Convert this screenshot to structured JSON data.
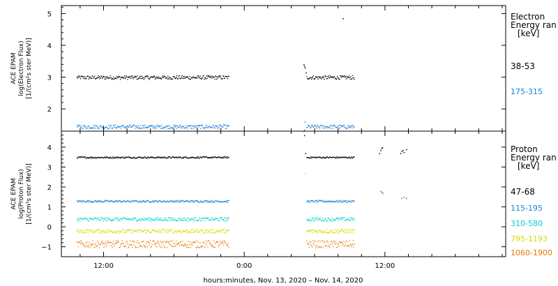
{
  "chart_data": [
    {
      "type": "scatter",
      "panel": "electron",
      "ylabel": [
        "ACE EPAM",
        "log(Electron Flux)",
        "[1/(cm²s ster MeV)]"
      ],
      "ylim": [
        1.3,
        5.25
      ],
      "yticks": [
        2,
        3,
        4,
        5
      ],
      "legend_title": [
        "Electron",
        "Energy ran",
        "[keV]"
      ],
      "series": [
        {
          "name": "38-53",
          "color": "#000000",
          "segments": [
            {
              "x": [
                -14.3,
                -1.3
              ],
              "level": 3.0,
              "jitter": 0.06
            },
            {
              "x": [
                5.3,
                9.4
              ],
              "level": 3.0,
              "jitter": 0.06
            }
          ],
          "points": [
            [
              5.05,
              3.4
            ],
            [
              5.1,
              3.35
            ],
            [
              5.15,
              3.3
            ],
            [
              5.25,
              3.15
            ],
            [
              8.4,
              4.85
            ]
          ]
        },
        {
          "name": "175-315",
          "color": "#1a7fd6",
          "segments": [
            {
              "x": [
                -14.3,
                -1.3
              ],
              "level": 1.45,
              "jitter": 0.06
            },
            {
              "x": [
                5.3,
                9.4
              ],
              "level": 1.45,
              "jitter": 0.06
            }
          ],
          "points": [
            [
              5.05,
              1.3
            ],
            [
              5.1,
              1.35
            ],
            [
              5.15,
              1.6
            ]
          ]
        }
      ]
    },
    {
      "type": "scatter",
      "panel": "proton",
      "ylabel": [
        "ACE EPAM",
        "log(Proton Flux)",
        "[1/(cm²s ster MeV)]"
      ],
      "ylim": [
        -1.5,
        4.8
      ],
      "yticks": [
        -1,
        0,
        1,
        2,
        3,
        4
      ],
      "legend_title": [
        "Proton",
        "Energy ran",
        "[keV]"
      ],
      "series": [
        {
          "name": "47-68",
          "color": "#000000",
          "segments": [
            {
              "x": [
                -14.3,
                -1.3
              ],
              "level": 3.5,
              "jitter": 0.04
            },
            {
              "x": [
                5.3,
                9.4
              ],
              "level": 3.5,
              "jitter": 0.04
            }
          ],
          "points": [
            [
              11.5,
              3.7
            ],
            [
              11.6,
              3.85
            ],
            [
              11.7,
              3.95
            ],
            [
              11.75,
              4.0
            ],
            [
              13.3,
              3.7
            ],
            [
              13.4,
              3.8
            ],
            [
              13.5,
              3.85
            ],
            [
              13.6,
              3.75
            ],
            [
              13.8,
              3.9
            ],
            [
              5.1,
              4.6
            ],
            [
              5.2,
              3.7
            ]
          ]
        },
        {
          "name": "115-195",
          "color": "#1a7fd6",
          "segments": [
            {
              "x": [
                -14.3,
                -1.3
              ],
              "level": 1.3,
              "jitter": 0.05
            },
            {
              "x": [
                5.3,
                9.4
              ],
              "level": 1.3,
              "jitter": 0.05
            }
          ],
          "points": [
            [
              11.6,
              1.8
            ],
            [
              11.7,
              1.75
            ],
            [
              11.8,
              1.7
            ],
            [
              13.4,
              1.45
            ],
            [
              13.6,
              1.5
            ],
            [
              13.8,
              1.45
            ]
          ]
        },
        {
          "name": "310-580",
          "color": "#00d0d0",
          "segments": [
            {
              "x": [
                -14.3,
                -1.3
              ],
              "level": 0.4,
              "jitter": 0.09
            },
            {
              "x": [
                5.3,
                9.4
              ],
              "level": 0.4,
              "jitter": 0.09
            }
          ],
          "points": []
        },
        {
          "name": "795-1193",
          "color": "#d4dc00",
          "segments": [
            {
              "x": [
                -14.3,
                -1.3
              ],
              "level": -0.2,
              "jitter": 0.1
            },
            {
              "x": [
                5.3,
                9.4
              ],
              "level": -0.2,
              "jitter": 0.1
            }
          ],
          "points": [
            [
              5.15,
              2.7
            ]
          ]
        },
        {
          "name": "1060-1900",
          "color": "#e87800",
          "segments": [
            {
              "x": [
                -14.3,
                -1.3
              ],
              "level": -0.85,
              "jitter": 0.18
            },
            {
              "x": [
                5.3,
                9.4
              ],
              "level": -0.85,
              "jitter": 0.18
            }
          ],
          "points": []
        }
      ]
    }
  ],
  "x_axis": {
    "range_hours": [
      -15.6,
      22.3
    ],
    "ticks": [
      {
        "hours": -12,
        "label": "12:00"
      },
      {
        "hours": 0,
        "label": "0:00"
      },
      {
        "hours": 12,
        "label": "12:00"
      }
    ],
    "minor_step_hours": 2,
    "xlabel": "hours:minutes, Nov. 13, 2020 – Nov. 14, 2020"
  }
}
